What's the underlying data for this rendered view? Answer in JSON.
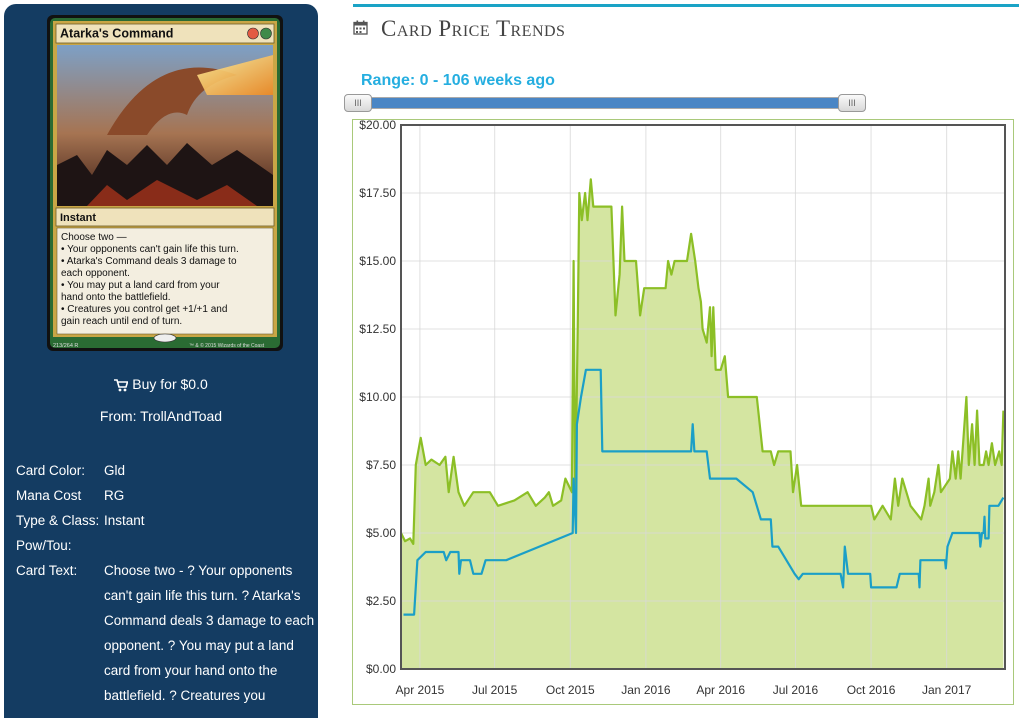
{
  "card": {
    "name": "Atarka's Command",
    "type_line": "Instant",
    "rules_text": [
      "Choose two —",
      "• Your opponents can't gain life this turn.",
      "• Atarka's Command deals 3 damage to",
      "  each opponent.",
      "• You may put a land card from your",
      "  hand onto the battlefield.",
      "• Creatures you control get +1/+1 and",
      "  gain reach until end of turn."
    ],
    "collector": "213/264 R",
    "copyright": "™ & © 2015 Wizards of the Coast"
  },
  "buy": {
    "label": "Buy for $0.0",
    "from": "From: TrollAndToad"
  },
  "details": [
    {
      "label": "Card Color:",
      "value": "Gld"
    },
    {
      "label": "Mana Cost",
      "value": "RG"
    },
    {
      "label": "Type & Class:",
      "value": "Instant"
    },
    {
      "label": "Pow/Tou:",
      "value": ""
    },
    {
      "label": "Card Text:",
      "value": "Choose two - ? Your opponents can't gain life this turn. ? Atarka's Command deals 3 damage to each opponent. ? You may put a land card from your hand onto the battlefield. ? Creatures you"
    }
  ],
  "page": {
    "title": "Card Price Trends",
    "range_label": "Range: 0 - 106 weeks ago"
  },
  "colors": {
    "sidebar": "#143c62",
    "accent": "#1aa3c6",
    "series_high": "#8cbf26",
    "series_low": "#1b9fc7",
    "area_fill": "#d4e5a1"
  },
  "icons": {
    "cart": "shopping-cart-icon",
    "calendar": "calendar-icon"
  },
  "chart_data": {
    "type": "line",
    "ylim": [
      0,
      20
    ],
    "yticks": [
      0,
      2.5,
      5,
      7.5,
      10,
      12.5,
      15,
      17.5,
      20
    ],
    "ytick_labels": [
      "$0.00",
      "$2.50",
      "$5.00",
      "$7.50",
      "$10.00",
      "$12.50",
      "$15.00",
      "$17.50",
      "$20.00"
    ],
    "xlim": [
      "2015-03-09",
      "2017-03-13"
    ],
    "xticks": [
      "2015-04-01",
      "2015-07-01",
      "2015-10-01",
      "2016-01-01",
      "2016-04-01",
      "2016-07-01",
      "2016-10-01",
      "2017-01-01"
    ],
    "xtick_labels": [
      "Apr 2015",
      "Jul 2015",
      "Oct 2015",
      "Jan 2016",
      "Apr 2016",
      "Jul 2016",
      "Oct 2016",
      "Jan 2017"
    ],
    "grid": true,
    "series": [
      {
        "color": "#8cbf26",
        "filled": true,
        "points": [
          [
            "2015-03-09",
            5.0
          ],
          [
            "2015-03-14",
            4.7
          ],
          [
            "2015-03-20",
            4.8
          ],
          [
            "2015-03-24",
            4.6
          ],
          [
            "2015-03-27",
            7.5
          ],
          [
            "2015-04-02",
            8.5
          ],
          [
            "2015-04-08",
            7.5
          ],
          [
            "2015-04-15",
            7.7
          ],
          [
            "2015-04-25",
            7.5
          ],
          [
            "2015-05-02",
            7.8
          ],
          [
            "2015-05-06",
            6.5
          ],
          [
            "2015-05-12",
            7.8
          ],
          [
            "2015-05-18",
            6.5
          ],
          [
            "2015-05-25",
            6.0
          ],
          [
            "2015-06-05",
            6.5
          ],
          [
            "2015-06-25",
            6.5
          ],
          [
            "2015-07-05",
            6.0
          ],
          [
            "2015-07-25",
            6.2
          ],
          [
            "2015-08-10",
            6.5
          ],
          [
            "2015-08-20",
            6.0
          ],
          [
            "2015-08-31",
            6.3
          ],
          [
            "2015-09-05",
            6.5
          ],
          [
            "2015-09-10",
            6.0
          ],
          [
            "2015-09-20",
            6.2
          ],
          [
            "2015-09-25",
            7.0
          ],
          [
            "2015-10-03",
            6.5
          ],
          [
            "2015-10-05",
            15.0
          ],
          [
            "2015-10-07",
            6.0
          ],
          [
            "2015-10-10",
            12.5
          ],
          [
            "2015-10-12",
            17.5
          ],
          [
            "2015-10-15",
            16.5
          ],
          [
            "2015-10-19",
            17.5
          ],
          [
            "2015-10-22",
            16.5
          ],
          [
            "2015-10-26",
            18.0
          ],
          [
            "2015-10-29",
            17.0
          ],
          [
            "2015-11-20",
            17.0
          ],
          [
            "2015-11-25",
            13.0
          ],
          [
            "2015-11-30",
            14.5
          ],
          [
            "2015-12-03",
            17.0
          ],
          [
            "2015-12-06",
            15.0
          ],
          [
            "2015-12-20",
            15.0
          ],
          [
            "2015-12-25",
            13.0
          ],
          [
            "2015-12-30",
            14.0
          ],
          [
            "2016-01-25",
            14.0
          ],
          [
            "2016-01-28",
            15.0
          ],
          [
            "2016-02-01",
            14.5
          ],
          [
            "2016-02-05",
            15.0
          ],
          [
            "2016-02-20",
            15.0
          ],
          [
            "2016-02-25",
            16.0
          ],
          [
            "2016-03-01",
            15.0
          ],
          [
            "2016-03-05",
            14.0
          ],
          [
            "2016-03-08",
            13.5
          ],
          [
            "2016-03-10",
            12.5
          ],
          [
            "2016-03-15",
            12.0
          ],
          [
            "2016-03-19",
            13.3
          ],
          [
            "2016-03-21",
            11.5
          ],
          [
            "2016-03-23",
            13.3
          ],
          [
            "2016-03-26",
            11.0
          ],
          [
            "2016-04-01",
            11.0
          ],
          [
            "2016-04-06",
            11.5
          ],
          [
            "2016-04-10",
            10.0
          ],
          [
            "2016-05-15",
            10.0
          ],
          [
            "2016-05-22",
            8.0
          ],
          [
            "2016-06-01",
            8.0
          ],
          [
            "2016-06-05",
            7.5
          ],
          [
            "2016-06-10",
            8.0
          ],
          [
            "2016-06-25",
            8.0
          ],
          [
            "2016-06-28",
            6.5
          ],
          [
            "2016-07-03",
            7.5
          ],
          [
            "2016-07-08",
            6.0
          ],
          [
            "2016-10-01",
            6.0
          ],
          [
            "2016-10-05",
            5.5
          ],
          [
            "2016-10-15",
            6.0
          ],
          [
            "2016-10-25",
            5.5
          ],
          [
            "2016-10-30",
            7.0
          ],
          [
            "2016-11-03",
            6.0
          ],
          [
            "2016-11-08",
            7.0
          ],
          [
            "2016-11-18",
            6.0
          ],
          [
            "2016-12-01",
            5.5
          ],
          [
            "2016-12-05",
            6.0
          ],
          [
            "2016-12-10",
            7.0
          ],
          [
            "2016-12-12",
            6.0
          ],
          [
            "2016-12-17",
            6.5
          ],
          [
            "2016-12-22",
            7.5
          ],
          [
            "2016-12-25",
            6.5
          ],
          [
            "2017-01-05",
            7.0
          ],
          [
            "2017-01-08",
            8.0
          ],
          [
            "2017-01-12",
            7.0
          ],
          [
            "2017-01-15",
            8.0
          ],
          [
            "2017-01-18",
            7.0
          ],
          [
            "2017-01-25",
            10.0
          ],
          [
            "2017-01-28",
            7.5
          ],
          [
            "2017-02-01",
            9.0
          ],
          [
            "2017-02-04",
            7.5
          ],
          [
            "2017-02-07",
            9.5
          ],
          [
            "2017-02-10",
            7.5
          ],
          [
            "2017-02-15",
            7.5
          ],
          [
            "2017-02-18",
            8.0
          ],
          [
            "2017-02-21",
            7.5
          ],
          [
            "2017-02-25",
            8.3
          ],
          [
            "2017-03-01",
            7.5
          ],
          [
            "2017-03-06",
            8.0
          ],
          [
            "2017-03-09",
            7.5
          ],
          [
            "2017-03-11",
            9.5
          ]
        ]
      },
      {
        "color": "#1b9fc7",
        "filled": false,
        "points": [
          [
            "2015-03-12",
            2.0
          ],
          [
            "2015-03-25",
            2.0
          ],
          [
            "2015-03-29",
            4.0
          ],
          [
            "2015-04-08",
            4.3
          ],
          [
            "2015-04-30",
            4.3
          ],
          [
            "2015-05-03",
            4.0
          ],
          [
            "2015-05-08",
            4.3
          ],
          [
            "2015-05-18",
            4.3
          ],
          [
            "2015-05-19",
            3.5
          ],
          [
            "2015-05-21",
            4.0
          ],
          [
            "2015-06-01",
            4.0
          ],
          [
            "2015-06-05",
            3.5
          ],
          [
            "2015-06-15",
            3.5
          ],
          [
            "2015-06-20",
            4.0
          ],
          [
            "2015-07-15",
            4.0
          ],
          [
            "2015-10-04",
            5.0
          ],
          [
            "2015-10-05",
            7.0
          ],
          [
            "2015-10-08",
            5.0
          ],
          [
            "2015-10-09",
            9.0
          ],
          [
            "2015-10-14",
            10.0
          ],
          [
            "2015-10-20",
            11.0
          ],
          [
            "2015-11-07",
            11.0
          ],
          [
            "2015-11-09",
            8.0
          ],
          [
            "2016-02-25",
            8.0
          ],
          [
            "2016-02-27",
            9.0
          ],
          [
            "2016-02-29",
            8.0
          ],
          [
            "2016-03-15",
            8.0
          ],
          [
            "2016-03-19",
            7.0
          ],
          [
            "2016-04-20",
            7.0
          ],
          [
            "2016-05-10",
            6.5
          ],
          [
            "2016-05-20",
            5.5
          ],
          [
            "2016-06-01",
            5.5
          ],
          [
            "2016-06-03",
            4.5
          ],
          [
            "2016-06-10",
            4.5
          ],
          [
            "2016-06-30",
            3.5
          ],
          [
            "2016-07-05",
            3.3
          ],
          [
            "2016-07-10",
            3.5
          ],
          [
            "2016-08-25",
            3.5
          ],
          [
            "2016-08-28",
            3.0
          ],
          [
            "2016-08-30",
            4.5
          ],
          [
            "2016-09-03",
            3.5
          ],
          [
            "2016-09-30",
            3.5
          ],
          [
            "2016-10-01",
            3.0
          ],
          [
            "2016-11-01",
            3.0
          ],
          [
            "2016-11-05",
            3.5
          ],
          [
            "2016-11-28",
            3.5
          ],
          [
            "2016-11-29",
            3.0
          ],
          [
            "2016-11-30",
            4.0
          ],
          [
            "2016-12-30",
            4.0
          ],
          [
            "2016-12-31",
            3.7
          ],
          [
            "2017-01-02",
            4.5
          ],
          [
            "2017-01-08",
            5.0
          ],
          [
            "2017-02-10",
            5.0
          ],
          [
            "2017-02-11",
            4.5
          ],
          [
            "2017-02-13",
            5.0
          ],
          [
            "2017-02-15",
            5.0
          ],
          [
            "2017-02-16",
            5.6
          ],
          [
            "2017-02-17",
            4.8
          ],
          [
            "2017-02-21",
            4.8
          ],
          [
            "2017-02-22",
            6.0
          ],
          [
            "2017-03-05",
            6.0
          ],
          [
            "2017-03-11",
            6.3
          ]
        ]
      }
    ]
  }
}
